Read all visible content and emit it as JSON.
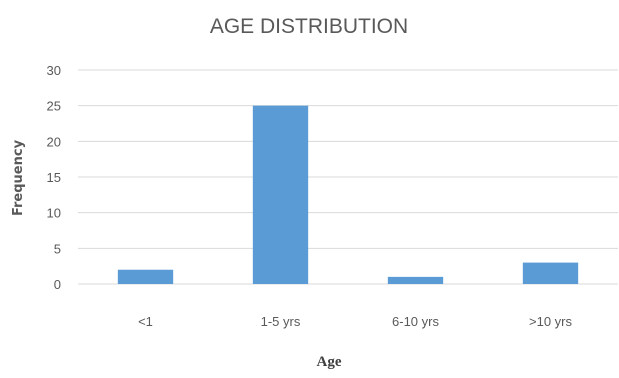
{
  "chart_data": {
    "type": "bar",
    "title": "AGE DISTRIBUTION",
    "xlabel": "Age",
    "ylabel": "Frequency",
    "categories": [
      "<1",
      "1-5 yrs",
      "6-10 yrs",
      ">10 yrs"
    ],
    "values": [
      2,
      25,
      1,
      3
    ],
    "ylim": [
      0,
      30
    ],
    "yticks": [
      0,
      5,
      10,
      15,
      20,
      25,
      30
    ],
    "grid": true,
    "legend": "none",
    "bar_color": "#5b9bd5",
    "grid_color": "#d9d9d9"
  }
}
